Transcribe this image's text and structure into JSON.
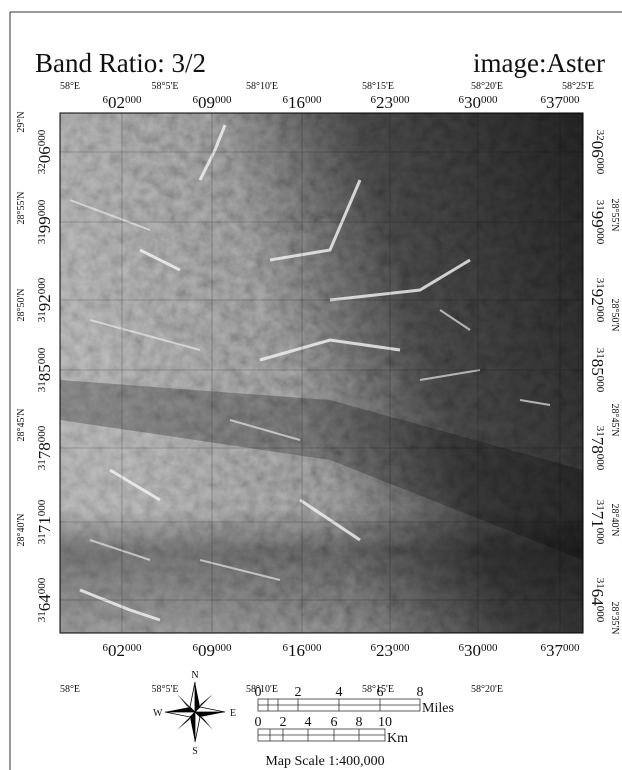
{
  "title": {
    "left": "Band Ratio: 3/2",
    "right": "image:Aster"
  },
  "top": {
    "geo": [
      "58°E",
      "58°5'E",
      "58°10'E",
      "58°15'E",
      "58°20'E",
      "58°25'E"
    ],
    "utm": [
      "602000",
      "609000",
      "616000",
      "623000",
      "630000",
      "637000"
    ]
  },
  "bottom": {
    "utm": [
      "602000",
      "609000",
      "616000",
      "623000",
      "630000",
      "637000"
    ],
    "geo": [
      "58°E",
      "58°5'E",
      "58°10'E",
      "58°15'E",
      "58°20'E"
    ]
  },
  "left": {
    "geo": [
      "29°N",
      "28°55'N",
      "28°50'N",
      "28°45'N",
      "28°40'N"
    ],
    "utm": [
      "3206000",
      "3199000",
      "3192000",
      "3185000",
      "3178000",
      "3171000",
      "3164000"
    ]
  },
  "right": {
    "utm": [
      "3206000",
      "3199000",
      "3192000",
      "3185000",
      "3178000",
      "3171000",
      "3164000"
    ],
    "geo": [
      "28°55'N",
      "28°50'N",
      "28°45'N",
      "28°40'N",
      "28°35'N"
    ]
  },
  "compass": {
    "n": "N",
    "s": "S",
    "e": "E",
    "w": "W"
  },
  "scale": {
    "miles": {
      "ticks": [
        "0",
        "2",
        "4",
        "6",
        "8"
      ],
      "unit": "Miles"
    },
    "km": {
      "ticks": [
        "0",
        "2",
        "4",
        "6",
        "8",
        "10"
      ],
      "unit": "Km"
    },
    "text": "Map Scale 1:400,000"
  }
}
